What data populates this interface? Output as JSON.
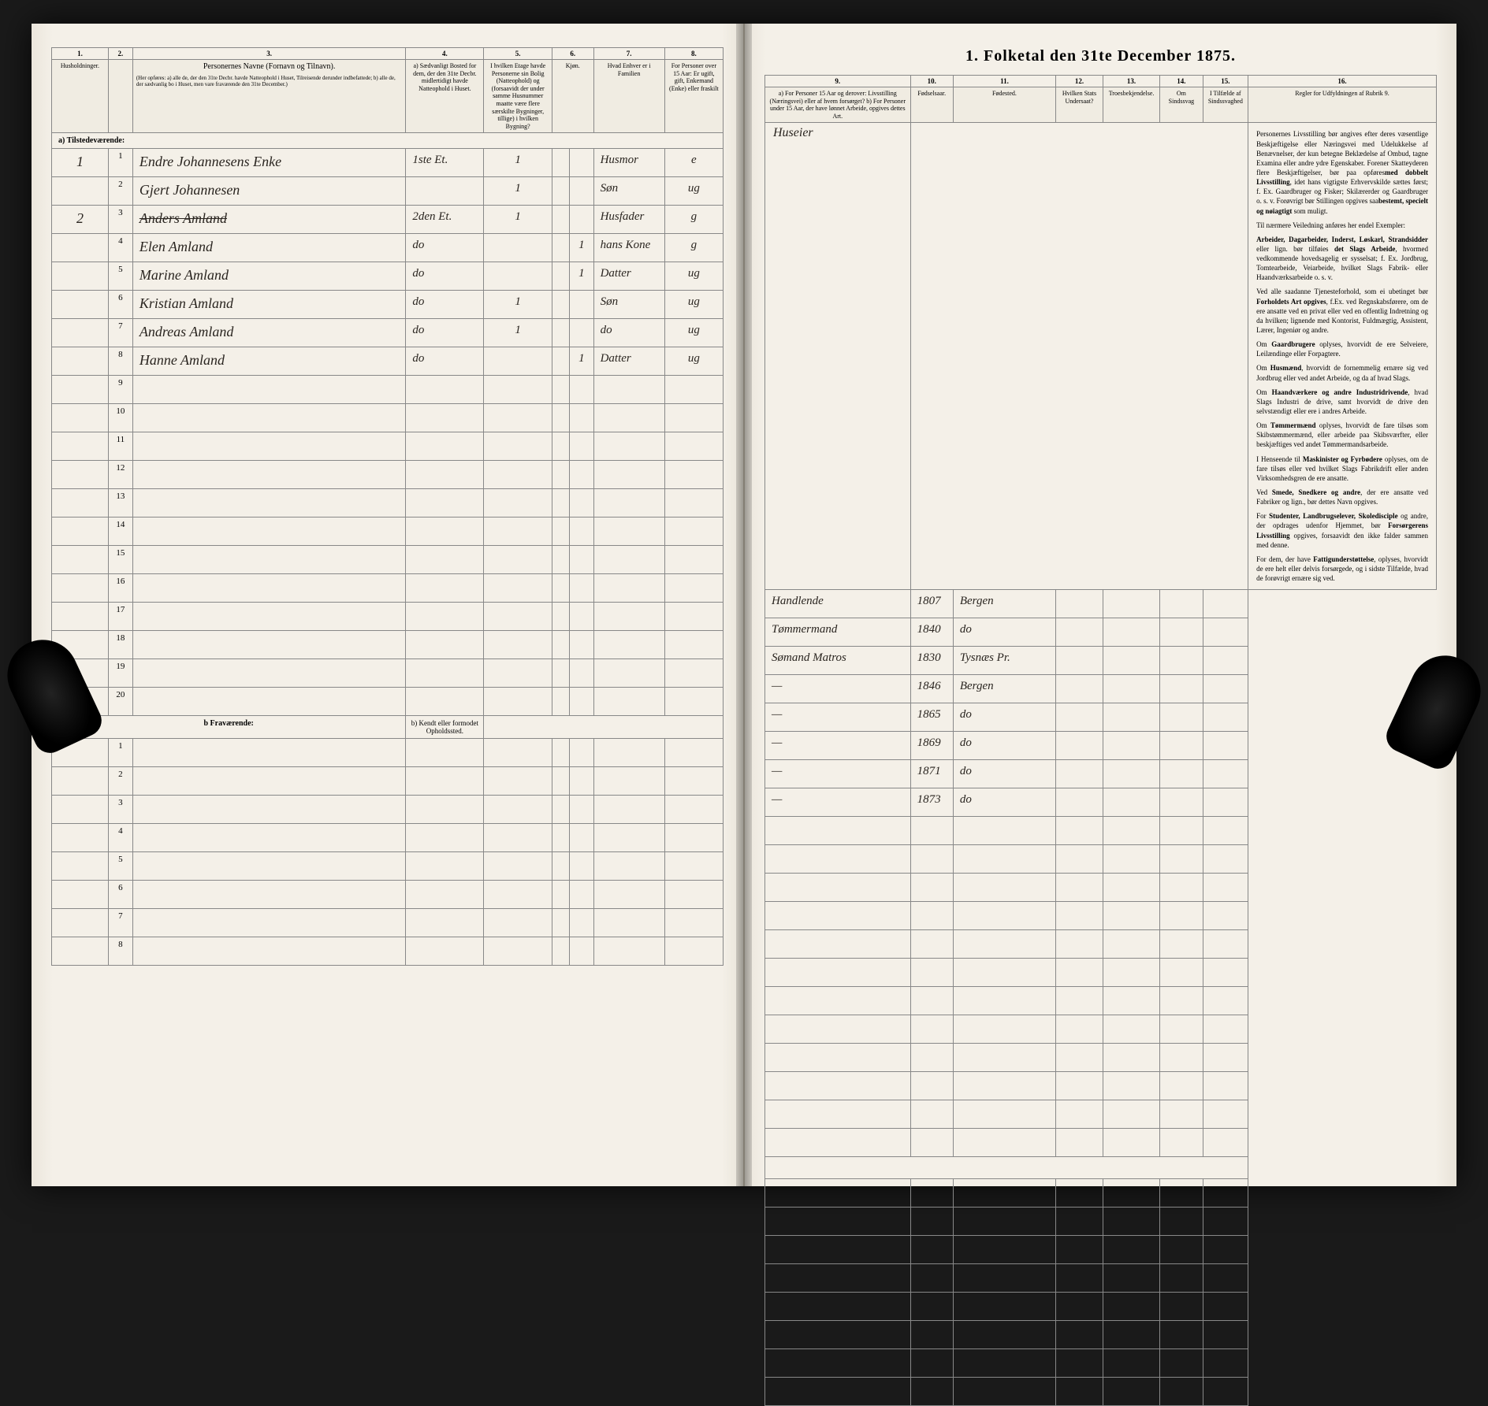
{
  "title": "1. Folketal den 31te December 1875.",
  "columns_left": {
    "nums": [
      "1.",
      "2.",
      "3.",
      "4.",
      "5.",
      "6.",
      "7.",
      "8."
    ],
    "headers": [
      "Husholdninger.",
      "",
      "Personernes Navne (Fornavn og Tilnavn).",
      "a) Sædvanligt Bosted for dem, der den 31te Decbr. midlertidigt havde Natteophold i Huset.",
      "I hvilken Etage havde Personerne sin Bolig (Natteophold) og (forsaavidt der under samme Husnummer maatte være flere særskilte Bygninger, tillige) i hvilken Bygning?",
      "Kjøn.",
      "Hvad Enhver er i Familien",
      "For Personer over 15 Aar: Er ugift, gift, Enkemand (Enke) eller fraskilt"
    ],
    "subheader": "(Her opføres: a) alle de, der den 31te Decbr. havde Natteophold i Huset, Tilreisende derunder indbefattede; b) alle de, der sædvanlig bo i Huset, men vare fraværende den 31te December.)"
  },
  "columns_right": {
    "nums": [
      "9.",
      "10.",
      "11.",
      "12.",
      "13.",
      "14.",
      "15.",
      "16."
    ],
    "headers": [
      "a) For Personer 15 Aar og derover: Livsstilling (Næringsvei) eller af hvem forsørget? b) For Personer under 15 Aar, der have lønnet Arbeide, opgives dettes Art.",
      "Fødselsaar.",
      "Fødested.",
      "Hvilken Stats Undersaat?",
      "Troesbekjendelse.",
      "Om Sindssvag",
      "I Tilfælde af Sindssvaghed",
      "Regler for Udfyldningen af Rubrik 9."
    ]
  },
  "section_a": "a) Tilstedeværende:",
  "section_b": "b  Fraværende:",
  "section_b_sub": "b) Kendt eller formodet Opholdssted.",
  "category_header": "Huseier",
  "rows": [
    {
      "hh": "1",
      "n": "1",
      "name": "Endre Johannesens Enke",
      "c4": "1ste Et.",
      "c5": "1",
      "c6": "",
      "c7": "Husmor",
      "c8": "e",
      "c9": "Handlende",
      "c10": "1807",
      "c11": "Bergen"
    },
    {
      "hh": "",
      "n": "2",
      "name": "Gjert Johannesen",
      "c4": "",
      "c5": "1",
      "c6": "",
      "c7": "Søn",
      "c8": "ug",
      "c9": "Tømmermand",
      "c10": "1840",
      "c11": "do"
    },
    {
      "hh": "2",
      "n": "3",
      "name": "Anders Amland",
      "c4": "2den Et.",
      "c5": "1",
      "c6": "",
      "c7": "Husfader",
      "c8": "g",
      "c9": "Sømand Matros",
      "c10": "1830",
      "c11": "Tysnæs Pr.",
      "strike": true
    },
    {
      "hh": "",
      "n": "4",
      "name": "Elen Amland",
      "c4": "do",
      "c5": "",
      "c6": "1",
      "c7": "hans Kone",
      "c8": "g",
      "c9": "—",
      "c10": "1846",
      "c11": "Bergen"
    },
    {
      "hh": "",
      "n": "5",
      "name": "Marine Amland",
      "c4": "do",
      "c5": "",
      "c6": "1",
      "c7": "Datter",
      "c8": "ug",
      "c9": "—",
      "c10": "1865",
      "c11": "do"
    },
    {
      "hh": "",
      "n": "6",
      "name": "Kristian Amland",
      "c4": "do",
      "c5": "1",
      "c6": "",
      "c7": "Søn",
      "c8": "ug",
      "c9": "—",
      "c10": "1869",
      "c11": "do"
    },
    {
      "hh": "",
      "n": "7",
      "name": "Andreas Amland",
      "c4": "do",
      "c5": "1",
      "c6": "",
      "c7": "do",
      "c8": "ug",
      "c9": "—",
      "c10": "1871",
      "c11": "do"
    },
    {
      "hh": "",
      "n": "8",
      "name": "Hanne Amland",
      "c4": "do",
      "c5": "",
      "c6": "1",
      "c7": "Datter",
      "c8": "ug",
      "c9": "—",
      "c10": "1873",
      "c11": "do"
    }
  ],
  "empty_rows_a": [
    "9",
    "10",
    "11",
    "12",
    "13",
    "14",
    "15",
    "16",
    "17",
    "18",
    "19",
    "20"
  ],
  "empty_rows_b": [
    "1",
    "2",
    "3",
    "4",
    "5",
    "6",
    "7",
    "8"
  ],
  "rules_text": {
    "p1": "Personernes Livsstilling bør angives efter deres væsentlige Beskjæftigelse eller Næringsvei med Udelukkelse af Benævnelser, der kun betegne Beklædelse af Ombud, tagne Examina eller andre ydre Egenskaber. Forener Skatteyderen flere Beskjæftigelser, bør paa opføres",
    "p1b": "med dobbelt Livsstilling",
    "p1c": ", idet hans vigtigste Erhvervskilde sættes først; f. Ex. Gaardbruger og Fisker; Skilærerder og Gaardbruger o. s. v. Forøvrigt bør Stillingen opgives saa",
    "p1d": "bestemt, specielt og nøiagtigt",
    "p1e": " som muligt.",
    "p2": "Til nærmere Veiledning anføres her endel Exempler:",
    "p3a": "Arbeider, Dagarbeider, Inderst, Løskarl, Strandsidder",
    "p3b": " eller lign. bør tilføies ",
    "p3c": "det Slags Arbeide",
    "p3d": ", hvormed vedkommende hovedsagelig er sysselsat; f. Ex. Jordbrug, Tomtearbeide, Veiarbeide, hvilket Slags Fabrik- eller Haandværksarbeide o. s. v.",
    "p4a": "Ved alle saadanne Tjenesteforhold, som ei ubetinget bør ",
    "p4b": "Forholdets Art opgives",
    "p4c": ", f.Ex. ved Regnskabsførere, om de ere ansatte ved en privat eller ved en offentlig Indretning og da hvilken; lignende med Kontorist, Fuldmægtig, Assistent, Lærer, Ingeniør og andre.",
    "p5a": "Om ",
    "p5b": "Gaardbrugere",
    "p5c": " oplyses, hvorvidt de ere Selveiere, Leilændinge eller Forpagtere.",
    "p6a": "Om ",
    "p6b": "Husmænd",
    "p6c": ", hvorvidt de forne­mmelig ernære sig ved Jordbrug eller ved andet Arbeide, og da af hvad Slags.",
    "p7a": "Om ",
    "p7b": "Haandværkere og andre Industridrivende",
    "p7c": ", hvad Slags Industri de drive, samt hvorvidt de drive den selvstændigt eller ere i andres Arbeide.",
    "p8a": "Om ",
    "p8b": "Tømmermænd",
    "p8c": " oplyses, hvorvidt de fare tilsøs som Skibstømmermænd, eller arbeide paa Skibsværfter, eller beskjæftiges ved andet Tømmermandsarbeide.",
    "p9a": "I Henseende til ",
    "p9b": "Maskinister og Fyrbødere",
    "p9c": " oplyses, om de fare tilsøs eller ved hvilket Slags Fabrikdrift eller anden Virksomhedsgren de ere ansatte.",
    "p10a": "Ved ",
    "p10b": "Smede, Snedkere og andre",
    "p10c": ", der ere ansatte ved Fabriker og lign., bør dettes Navn opgives.",
    "p11a": "For ",
    "p11b": "Studenter, Landbrugselever, Skoledisciple",
    "p11c": " og andre, der opdrages udenfor Hjemmet, bør ",
    "p11d": "Forsørgerens Livsstilling",
    "p11e": " opgives, forsaavidt den ikke falder sammen med denne.",
    "p12a": "For dem, der have ",
    "p12b": "Fattigunderstøttelse",
    "p12c": ", oplyses, hvorvidt de ere helt eller delvis forsørgede, og i sidste Tilfælde, hvad de forøvrigt ernære sig ved."
  },
  "colors": {
    "paper": "#f4f0e8",
    "border": "#888888",
    "ink": "#2a2520",
    "background": "#1a1a1a"
  }
}
